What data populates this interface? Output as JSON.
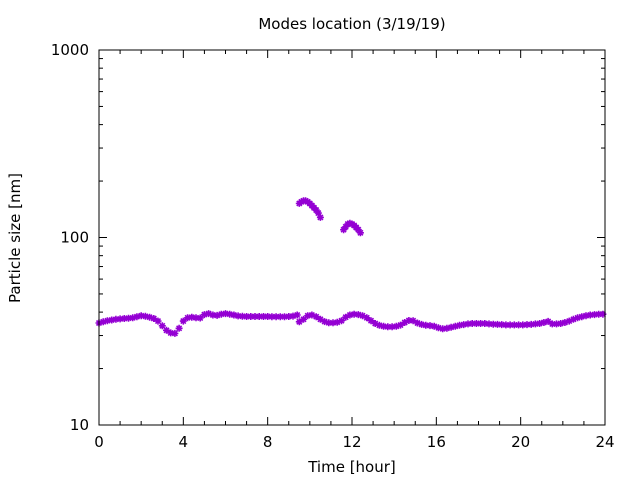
{
  "chart_data": {
    "type": "scatter",
    "title": "Modes location (3/19/19)",
    "xlabel": "Time [hour]",
    "ylabel": "Particle size [nm]",
    "xlim": [
      0,
      24
    ],
    "ylim": [
      10,
      1000
    ],
    "yscale": "log",
    "x_ticks": [
      0,
      4,
      8,
      12,
      16,
      20,
      24
    ],
    "x_tick_labels": [
      "0",
      "4",
      "8",
      "12",
      "16",
      "20",
      "24"
    ],
    "y_ticks": [
      10,
      100,
      1000
    ],
    "y_tick_labels": [
      "10",
      "100",
      "1000"
    ],
    "grid": false,
    "legend": "none",
    "marker_color": "#9400d3",
    "series": [
      {
        "points": [
          [
            0.0,
            35.0
          ],
          [
            0.2,
            35.5
          ],
          [
            0.4,
            36.0
          ],
          [
            0.6,
            36.3
          ],
          [
            0.8,
            36.6
          ],
          [
            1.0,
            36.8
          ],
          [
            1.2,
            37.0
          ],
          [
            1.4,
            37.1
          ],
          [
            1.6,
            37.3
          ],
          [
            1.8,
            37.8
          ],
          [
            2.0,
            38.3
          ],
          [
            2.2,
            38.0
          ],
          [
            2.4,
            37.6
          ],
          [
            2.6,
            37.0
          ],
          [
            2.8,
            35.8
          ],
          [
            3.0,
            33.8
          ],
          [
            3.2,
            32.0
          ],
          [
            3.4,
            31.0
          ],
          [
            3.6,
            30.8
          ],
          [
            3.8,
            32.8
          ],
          [
            4.0,
            35.8
          ],
          [
            4.2,
            37.3
          ],
          [
            4.4,
            37.6
          ],
          [
            4.6,
            37.3
          ],
          [
            4.8,
            37.2
          ],
          [
            5.0,
            38.8
          ],
          [
            5.2,
            39.3
          ],
          [
            5.4,
            38.6
          ],
          [
            5.6,
            38.4
          ],
          [
            5.8,
            39.0
          ],
          [
            6.0,
            39.3
          ],
          [
            6.2,
            39.0
          ],
          [
            6.4,
            38.6
          ],
          [
            6.6,
            38.2
          ],
          [
            6.8,
            38.0
          ],
          [
            7.0,
            37.9
          ],
          [
            7.2,
            37.9
          ],
          [
            7.4,
            37.9
          ],
          [
            7.6,
            37.9
          ],
          [
            7.8,
            37.9
          ],
          [
            8.0,
            37.9
          ],
          [
            8.2,
            37.8
          ],
          [
            8.4,
            37.8
          ],
          [
            8.6,
            37.8
          ],
          [
            8.8,
            37.8
          ],
          [
            9.0,
            37.9
          ],
          [
            9.2,
            38.1
          ],
          [
            9.4,
            38.6
          ],
          [
            9.5,
            35.5
          ],
          [
            9.7,
            36.6
          ],
          [
            9.9,
            38.3
          ],
          [
            10.1,
            38.6
          ],
          [
            10.3,
            37.8
          ],
          [
            10.5,
            36.6
          ],
          [
            10.7,
            35.6
          ],
          [
            10.9,
            35.1
          ],
          [
            11.1,
            35.1
          ],
          [
            11.3,
            35.3
          ],
          [
            11.5,
            36.0
          ],
          [
            11.7,
            37.6
          ],
          [
            11.9,
            38.6
          ],
          [
            12.1,
            39.0
          ],
          [
            12.3,
            38.8
          ],
          [
            12.5,
            38.3
          ],
          [
            12.7,
            37.3
          ],
          [
            12.9,
            36.0
          ],
          [
            13.1,
            34.8
          ],
          [
            13.3,
            34.0
          ],
          [
            13.5,
            33.6
          ],
          [
            13.7,
            33.4
          ],
          [
            13.9,
            33.4
          ],
          [
            14.1,
            33.6
          ],
          [
            14.3,
            34.1
          ],
          [
            14.5,
            35.2
          ],
          [
            14.7,
            36.1
          ],
          [
            14.9,
            36.0
          ],
          [
            15.1,
            35.0
          ],
          [
            15.3,
            34.4
          ],
          [
            15.5,
            34.0
          ],
          [
            15.7,
            33.9
          ],
          [
            15.9,
            33.6
          ],
          [
            16.1,
            33.0
          ],
          [
            16.3,
            32.6
          ],
          [
            16.5,
            32.8
          ],
          [
            16.7,
            33.2
          ],
          [
            16.9,
            33.6
          ],
          [
            17.1,
            34.0
          ],
          [
            17.3,
            34.3
          ],
          [
            17.5,
            34.6
          ],
          [
            17.7,
            34.8
          ],
          [
            17.9,
            34.8
          ],
          [
            18.1,
            34.8
          ],
          [
            18.3,
            34.8
          ],
          [
            18.5,
            34.6
          ],
          [
            18.7,
            34.5
          ],
          [
            18.9,
            34.4
          ],
          [
            19.1,
            34.3
          ],
          [
            19.3,
            34.2
          ],
          [
            19.5,
            34.2
          ],
          [
            19.7,
            34.2
          ],
          [
            19.9,
            34.2
          ],
          [
            20.1,
            34.2
          ],
          [
            20.3,
            34.3
          ],
          [
            20.5,
            34.4
          ],
          [
            20.7,
            34.6
          ],
          [
            20.9,
            34.8
          ],
          [
            21.1,
            35.2
          ],
          [
            21.3,
            35.7
          ],
          [
            21.5,
            34.6
          ],
          [
            21.7,
            34.6
          ],
          [
            21.9,
            34.8
          ],
          [
            22.1,
            35.2
          ],
          [
            22.3,
            35.8
          ],
          [
            22.5,
            36.6
          ],
          [
            22.7,
            37.3
          ],
          [
            22.9,
            37.8
          ],
          [
            23.1,
            38.3
          ],
          [
            23.3,
            38.6
          ],
          [
            23.5,
            38.8
          ],
          [
            23.7,
            39.0
          ],
          [
            23.9,
            39.0
          ]
        ]
      },
      {
        "points": [
          [
            9.5,
            152
          ],
          [
            9.6,
            155
          ],
          [
            9.7,
            157
          ],
          [
            9.8,
            157
          ],
          [
            9.9,
            155
          ],
          [
            10.0,
            152
          ],
          [
            10.1,
            148
          ],
          [
            10.2,
            144
          ],
          [
            10.3,
            140
          ],
          [
            10.4,
            135
          ],
          [
            10.5,
            128
          ]
        ]
      },
      {
        "points": [
          [
            11.6,
            110
          ],
          [
            11.7,
            114
          ],
          [
            11.8,
            118
          ],
          [
            11.9,
            119
          ],
          [
            12.0,
            118
          ],
          [
            12.1,
            116
          ],
          [
            12.2,
            113
          ],
          [
            12.3,
            110
          ],
          [
            12.4,
            106
          ]
        ]
      }
    ]
  }
}
